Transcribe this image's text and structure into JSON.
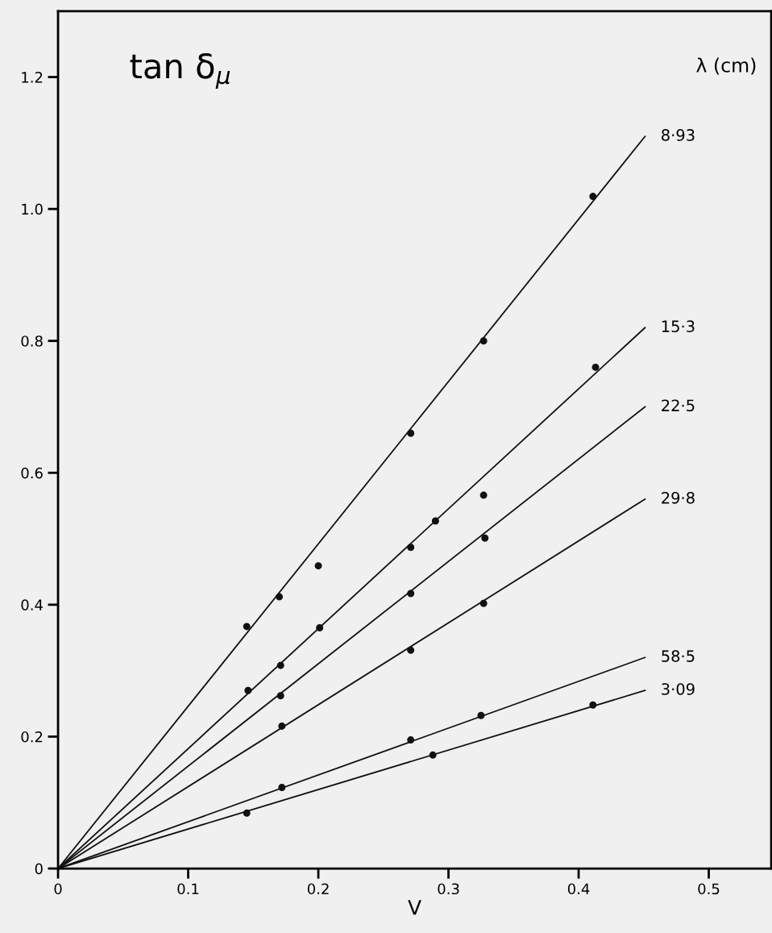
{
  "chart_data": {
    "type": "scatter",
    "ylabel": "tan δ$_{μ}$",
    "xlabel": "V",
    "legend_title": "λ (cm)",
    "xlim": [
      0,
      0.548
    ],
    "ylim": [
      0,
      1.3
    ],
    "xticks": [
      0,
      0.1,
      0.2,
      0.3,
      0.4,
      0.5
    ],
    "yticks": [
      0,
      0.2,
      0.4,
      0.6,
      0.8,
      {
        "value": 1.0,
        "label": "1.0"
      },
      1.2
    ],
    "grid": false,
    "legend": false,
    "series": [
      {
        "marker": "circle",
        "color": "#111111",
        "x": [
          0.145,
          0.17,
          0.2,
          0.271,
          0.327,
          0.411
        ],
        "values": [
          0.367,
          0.412,
          0.459,
          0.66,
          0.8,
          1.019
        ]
      },
      {
        "marker": "circle",
        "color": "#111111",
        "x": [
          0.146,
          0.171,
          0.201,
          0.271,
          0.29,
          0.327,
          0.413
        ],
        "values": [
          0.27,
          0.308,
          0.365,
          0.487,
          0.527,
          0.566,
          0.76
        ]
      },
      {
        "marker": "circle",
        "color": "#111111",
        "x": [
          0.171,
          0.271,
          0.328
        ],
        "values": [
          0.262,
          0.417,
          0.501
        ]
      },
      {
        "marker": "circle",
        "color": "#111111",
        "x": [
          0.172,
          0.271,
          0.327
        ],
        "values": [
          0.216,
          0.331,
          0.402
        ]
      },
      {
        "marker": "circle",
        "color": "#111111",
        "x": [
          0.271,
          0.325
        ],
        "values": [
          0.195,
          0.232
        ]
      },
      {
        "marker": "circle",
        "color": "#111111",
        "x": [
          0.145,
          0.172,
          0.288,
          0.411
        ],
        "values": [
          0.084,
          0.123,
          0.172,
          0.248
        ]
      },
      {
        "type": "line",
        "name": "8·93",
        "color": "#111111",
        "x": [
          0,
          0.451
        ],
        "values": [
          0,
          1.11
        ]
      },
      {
        "type": "line",
        "name": "15·3",
        "color": "#111111",
        "x": [
          0,
          0.451
        ],
        "values": [
          0,
          0.82
        ]
      },
      {
        "type": "line",
        "name": "22·5",
        "color": "#111111",
        "x": [
          0,
          0.451
        ],
        "values": [
          0,
          0.7
        ]
      },
      {
        "type": "line",
        "name": "29·8",
        "color": "#111111",
        "x": [
          0,
          0.451
        ],
        "values": [
          0,
          0.56
        ]
      },
      {
        "type": "line",
        "name": "58·5",
        "color": "#111111",
        "x": [
          0,
          0.451
        ],
        "values": [
          0,
          0.32
        ]
      },
      {
        "type": "line",
        "name": "3·09",
        "color": "#111111",
        "x": [
          0,
          0.451
        ],
        "values": [
          0,
          0.27
        ]
      }
    ]
  }
}
